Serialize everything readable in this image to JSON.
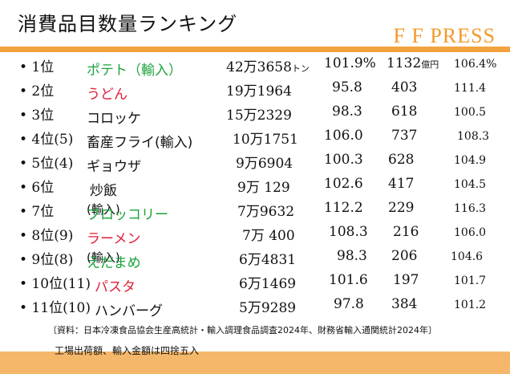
{
  "header": {
    "title": "消費品目数量ランキング",
    "brand": "F F PRESS"
  },
  "colors": {
    "green": "#1aa33a",
    "red": "#e0203a",
    "dark": "#111111",
    "highlight": "#ffff33",
    "accent": "#f39a29"
  },
  "rows": [
    {
      "rank": "• 1位",
      "name": "ポテト（輸入）",
      "name_sub": "",
      "volume": "42万3658",
      "volume_unit": "トン",
      "pct": "101.9%",
      "amount": "1132",
      "amount_unit": "億円",
      "index": "106.4%"
    },
    {
      "rank": "• 2位",
      "name": "うどん",
      "name_sub": "",
      "volume": "19万1964",
      "volume_unit": "",
      "pct": "95.8",
      "amount": "403",
      "amount_unit": "",
      "index": "111.4"
    },
    {
      "rank": "• 3位",
      "name": "コロッケ",
      "name_sub": "",
      "volume": "15万2329",
      "volume_unit": "",
      "pct": "98.3",
      "amount": "618",
      "amount_unit": "",
      "index": "100.5"
    },
    {
      "rank": "• 4位(5)",
      "name": "畜産フライ(輸入)",
      "name_sub": "",
      "volume": "10万1751",
      "volume_unit": "",
      "pct": "106.0",
      "amount": "737",
      "amount_unit": "",
      "index": "108.3"
    },
    {
      "rank": "• 5位(4)",
      "name": "ギョウザ",
      "name_sub": "",
      "volume": "9万6904",
      "volume_unit": "",
      "pct": "100.3",
      "amount": "628",
      "amount_unit": "",
      "index": "104.9"
    },
    {
      "rank": "• 6位",
      "name": "炒飯",
      "name_sub": "",
      "volume": "9万 129",
      "volume_unit": "",
      "pct": "102.6",
      "amount": "417",
      "amount_unit": "",
      "index": "104.5"
    },
    {
      "rank": "• 7位",
      "name": "ブロッコリー",
      "name_sub": "(輸入)",
      "volume": "7万9632",
      "volume_unit": "",
      "pct": "112.2",
      "amount": "229",
      "amount_unit": "",
      "index": "116.3"
    },
    {
      "rank": "• 8位(9)",
      "name": "ラーメン",
      "name_sub": "",
      "volume": "7万 400",
      "volume_unit": "",
      "pct": "108.3",
      "amount": "216",
      "amount_unit": "",
      "index": "106.0"
    },
    {
      "rank": "• 9位(8)",
      "name": "えだまめ",
      "name_sub": "(輸入)",
      "volume": "6万4831",
      "volume_unit": "",
      "pct": "98.3",
      "amount": "206",
      "amount_unit": "",
      "index": "104.6"
    },
    {
      "rank": "• 10位(11)",
      "name": "パスタ",
      "name_sub": "",
      "volume": "6万1469",
      "volume_unit": "",
      "pct": "101.6",
      "amount": "197",
      "amount_unit": "",
      "index": "101.7"
    },
    {
      "rank": "• 11位(10)",
      "name": "ハンバーグ",
      "name_sub": "",
      "volume": "5万9289",
      "volume_unit": "",
      "pct": "97.8",
      "amount": "384",
      "amount_unit": "",
      "index": "101.2"
    }
  ],
  "notes": {
    "source": "〔資料：日本冷凍食品協会生産高統計・輸入調理食品調査2024年、財務省輸入通関統計2024年〕",
    "rounding": "工場出荷額、輸入金額は四捨五入"
  }
}
